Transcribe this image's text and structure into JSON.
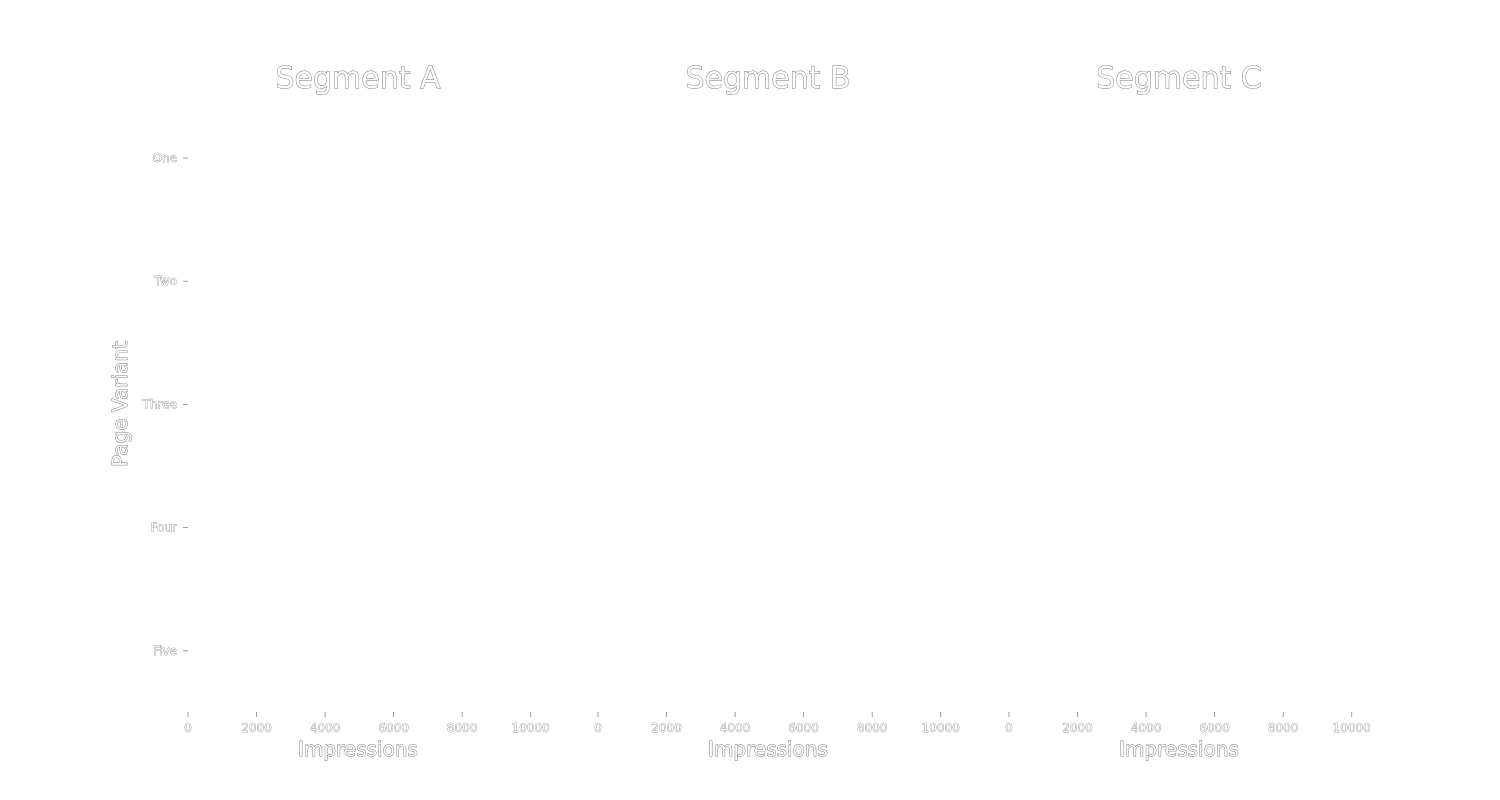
{
  "chart_data": {
    "type": "bar",
    "orientation": "horizontal",
    "ylabel": "Page Variant",
    "categories": [
      "One",
      "Two",
      "Three",
      "Four",
      "Five"
    ],
    "xlim": [
      0,
      11000
    ],
    "x_ticks": [
      "0",
      "2000",
      "4000",
      "6000",
      "8000",
      "10000"
    ],
    "x_tick_values": [
      0,
      2000,
      4000,
      6000,
      8000,
      10000
    ],
    "grid": false,
    "panels": [
      {
        "title": "Segment A",
        "xlabel": "Impressions",
        "series": []
      },
      {
        "title": "Segment B",
        "xlabel": "Impressions",
        "series": []
      },
      {
        "title": "Segment C",
        "xlabel": "Impressions",
        "series": []
      }
    ]
  }
}
